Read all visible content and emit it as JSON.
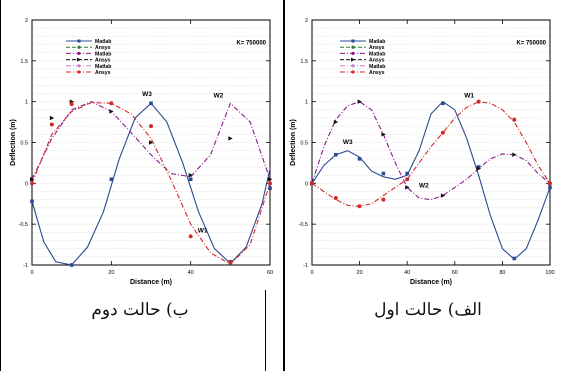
{
  "chart_data": [
    {
      "type": "line",
      "panel": "left",
      "caption": "ب) حالت دوم",
      "annotation": "K= 750000",
      "xlabel": "Distance (m)",
      "ylabel": "Deflection (m)",
      "xlim": [
        0,
        60
      ],
      "ylim": [
        -1,
        2
      ],
      "xticks": [
        "0",
        "20",
        "40",
        "60"
      ],
      "yticks": [
        "-1",
        "-0.5",
        "0",
        "0.5",
        "1",
        "1.5",
        "2"
      ],
      "legend": [
        "Matlab",
        "Ansys",
        "Matlab",
        "Ansys",
        "Matlab",
        "Ansys"
      ],
      "mode_labels": [
        {
          "text": "W3",
          "x": 29,
          "y": 1.07
        },
        {
          "text": "W2",
          "x": 47,
          "y": 1.05
        },
        {
          "text": "W1",
          "x": 43,
          "y": -0.6
        }
      ],
      "series": [
        {
          "color": "#2b4a93",
          "dash": "solid",
          "x": [
            0,
            10,
            20,
            30,
            40,
            50,
            60
          ],
          "y": [
            -0.22,
            -1.0,
            0.05,
            0.98,
            0.05,
            -0.96,
            -0.06
          ],
          "curve_x": [
            0,
            3,
            6,
            10,
            14,
            18,
            22,
            26,
            30,
            34,
            38,
            42,
            46,
            50,
            54,
            58,
            60
          ],
          "curve_y": [
            -0.22,
            -0.72,
            -0.96,
            -1.0,
            -0.78,
            -0.35,
            0.3,
            0.8,
            0.98,
            0.75,
            0.25,
            -0.35,
            -0.8,
            -0.98,
            -0.78,
            -0.25,
            0.18
          ]
        },
        {
          "color": "#8b1a8b",
          "dash": "dash-dot",
          "x": [
            0,
            5,
            10,
            20,
            30,
            40,
            50,
            60
          ],
          "y": [
            0.05,
            0.8,
            1.0,
            0.88,
            0.5,
            0.1,
            0.55,
            0.05
          ],
          "curve_x": [
            0,
            5,
            10,
            15,
            20,
            25,
            30,
            35,
            40,
            45,
            50,
            55,
            60
          ],
          "curve_y": [
            0.05,
            0.55,
            0.9,
            1.0,
            0.88,
            0.62,
            0.35,
            0.12,
            0.08,
            0.35,
            0.98,
            0.75,
            0.05
          ]
        },
        {
          "color": "#d42a2a",
          "dash": "dash-dot",
          "x": [
            0,
            5,
            10,
            20,
            30,
            40,
            50,
            60
          ],
          "y": [
            0.0,
            0.72,
            0.97,
            0.98,
            0.7,
            -0.65,
            -0.97,
            0.0
          ],
          "curve_x": [
            0,
            5,
            10,
            15,
            20,
            25,
            30,
            35,
            40,
            45,
            50,
            55,
            60
          ],
          "curve_y": [
            0.0,
            0.6,
            0.88,
            0.99,
            0.98,
            0.85,
            0.55,
            0.05,
            -0.5,
            -0.85,
            -0.99,
            -0.75,
            0.0
          ]
        }
      ]
    },
    {
      "type": "line",
      "panel": "right",
      "caption": "الف) حالت اول",
      "annotation": "K= 750000",
      "xlabel": "Distance (m)",
      "ylabel": "Deflection (m)",
      "xlim": [
        0,
        100
      ],
      "ylim": [
        -1,
        2
      ],
      "xticks": [
        "0",
        "20",
        "40",
        "60",
        "80",
        "100"
      ],
      "yticks": [
        "-1",
        "-0.5",
        "0",
        "0.5",
        "1",
        "1.5",
        "2"
      ],
      "legend": [
        "Matlab",
        "Ansys",
        "Matlab",
        "Ansys",
        "Matlab",
        "Ansys"
      ],
      "mode_labels": [
        {
          "text": "W1",
          "x": 66,
          "y": 1.05
        },
        {
          "text": "W3",
          "x": 15,
          "y": 0.48
        },
        {
          "text": "W2",
          "x": 47,
          "y": -0.05
        }
      ],
      "series": [
        {
          "color": "#2b4a93",
          "dash": "solid",
          "x": [
            0,
            10,
            20,
            30,
            40,
            55,
            70,
            85,
            100
          ],
          "y": [
            0.0,
            0.35,
            0.3,
            0.12,
            0.12,
            0.98,
            0.2,
            -0.92,
            -0.05
          ],
          "curve_x": [
            0,
            5,
            10,
            15,
            20,
            25,
            30,
            35,
            40,
            45,
            50,
            55,
            60,
            65,
            70,
            75,
            80,
            85,
            90,
            95,
            100
          ],
          "curve_y": [
            0.0,
            0.22,
            0.35,
            0.4,
            0.32,
            0.15,
            0.08,
            0.05,
            0.1,
            0.4,
            0.85,
            1.0,
            0.9,
            0.55,
            0.1,
            -0.4,
            -0.8,
            -0.93,
            -0.8,
            -0.45,
            -0.05
          ]
        },
        {
          "color": "#8b1a8b",
          "dash": "dash-dot",
          "x": [
            0,
            10,
            20,
            30,
            40,
            55,
            70,
            85,
            100
          ],
          "y": [
            0.0,
            0.75,
            1.0,
            0.6,
            -0.05,
            -0.15,
            0.18,
            0.35,
            0.0
          ],
          "curve_x": [
            0,
            5,
            10,
            15,
            20,
            25,
            30,
            35,
            40,
            45,
            50,
            55,
            60,
            65,
            70,
            75,
            80,
            85,
            90,
            95,
            100
          ],
          "curve_y": [
            0.0,
            0.45,
            0.78,
            0.95,
            1.0,
            0.9,
            0.6,
            0.25,
            -0.05,
            -0.18,
            -0.2,
            -0.15,
            -0.05,
            0.05,
            0.18,
            0.3,
            0.36,
            0.35,
            0.28,
            0.12,
            0.0
          ]
        },
        {
          "color": "#d42a2a",
          "dash": "dash-dot",
          "x": [
            0,
            10,
            20,
            30,
            40,
            55,
            70,
            85,
            100
          ],
          "y": [
            0.0,
            -0.18,
            -0.28,
            -0.2,
            0.05,
            0.62,
            1.0,
            0.78,
            0.0
          ],
          "curve_x": [
            0,
            5,
            10,
            15,
            20,
            25,
            30,
            35,
            40,
            45,
            50,
            55,
            60,
            65,
            70,
            75,
            80,
            85,
            90,
            95,
            100
          ],
          "curve_y": [
            0.0,
            -0.1,
            -0.2,
            -0.27,
            -0.28,
            -0.25,
            -0.15,
            -0.05,
            0.05,
            0.25,
            0.45,
            0.62,
            0.8,
            0.93,
            1.0,
            0.98,
            0.9,
            0.75,
            0.5,
            0.22,
            0.0
          ]
        }
      ]
    }
  ]
}
